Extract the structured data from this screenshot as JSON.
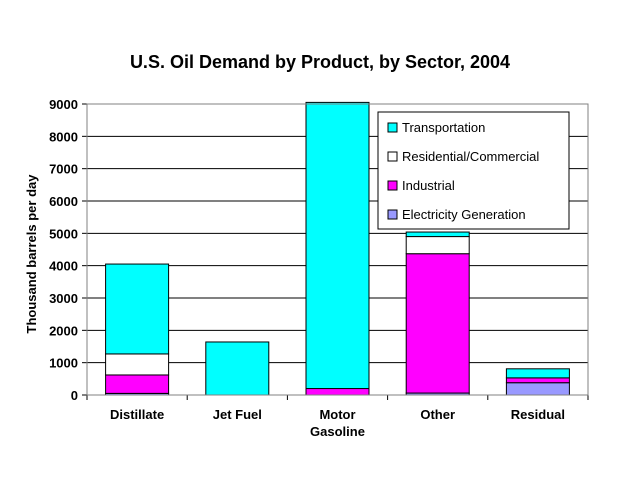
{
  "chart_data": {
    "type": "bar",
    "stacked": true,
    "title": "U.S. Oil Demand by Product, by Sector, 2004",
    "xlabel": "",
    "ylabel": "Thousand barrels per day",
    "ylim": [
      0,
      9000
    ],
    "yticks": [
      0,
      1000,
      2000,
      3000,
      4000,
      5000,
      6000,
      7000,
      8000,
      9000
    ],
    "grid": true,
    "legend_position": "top-right",
    "categories": [
      "Distillate",
      "Jet Fuel",
      "Motor\nGasoline",
      "Other",
      "Residual"
    ],
    "category_lines": [
      [
        "Distillate"
      ],
      [
        "Jet Fuel"
      ],
      [
        "Motor",
        "Gasoline"
      ],
      [
        "Other"
      ],
      [
        "Residual"
      ]
    ],
    "series": [
      {
        "name": "Electricity Generation",
        "color": "#9999ff",
        "values": [
          50,
          0,
          0,
          60,
          380
        ]
      },
      {
        "name": "Industrial",
        "color": "#ff00ff",
        "values": [
          570,
          0,
          200,
          4310,
          150
        ]
      },
      {
        "name": "Residential/Commercial",
        "color": "#ffffff",
        "values": [
          650,
          0,
          0,
          530,
          0
        ]
      },
      {
        "name": "Transportation",
        "color": "#00ffff",
        "values": [
          2780,
          1640,
          8850,
          140,
          280
        ]
      }
    ],
    "legend_order": [
      "Transportation",
      "Residential/Commercial",
      "Industrial",
      "Electricity Generation"
    ]
  }
}
